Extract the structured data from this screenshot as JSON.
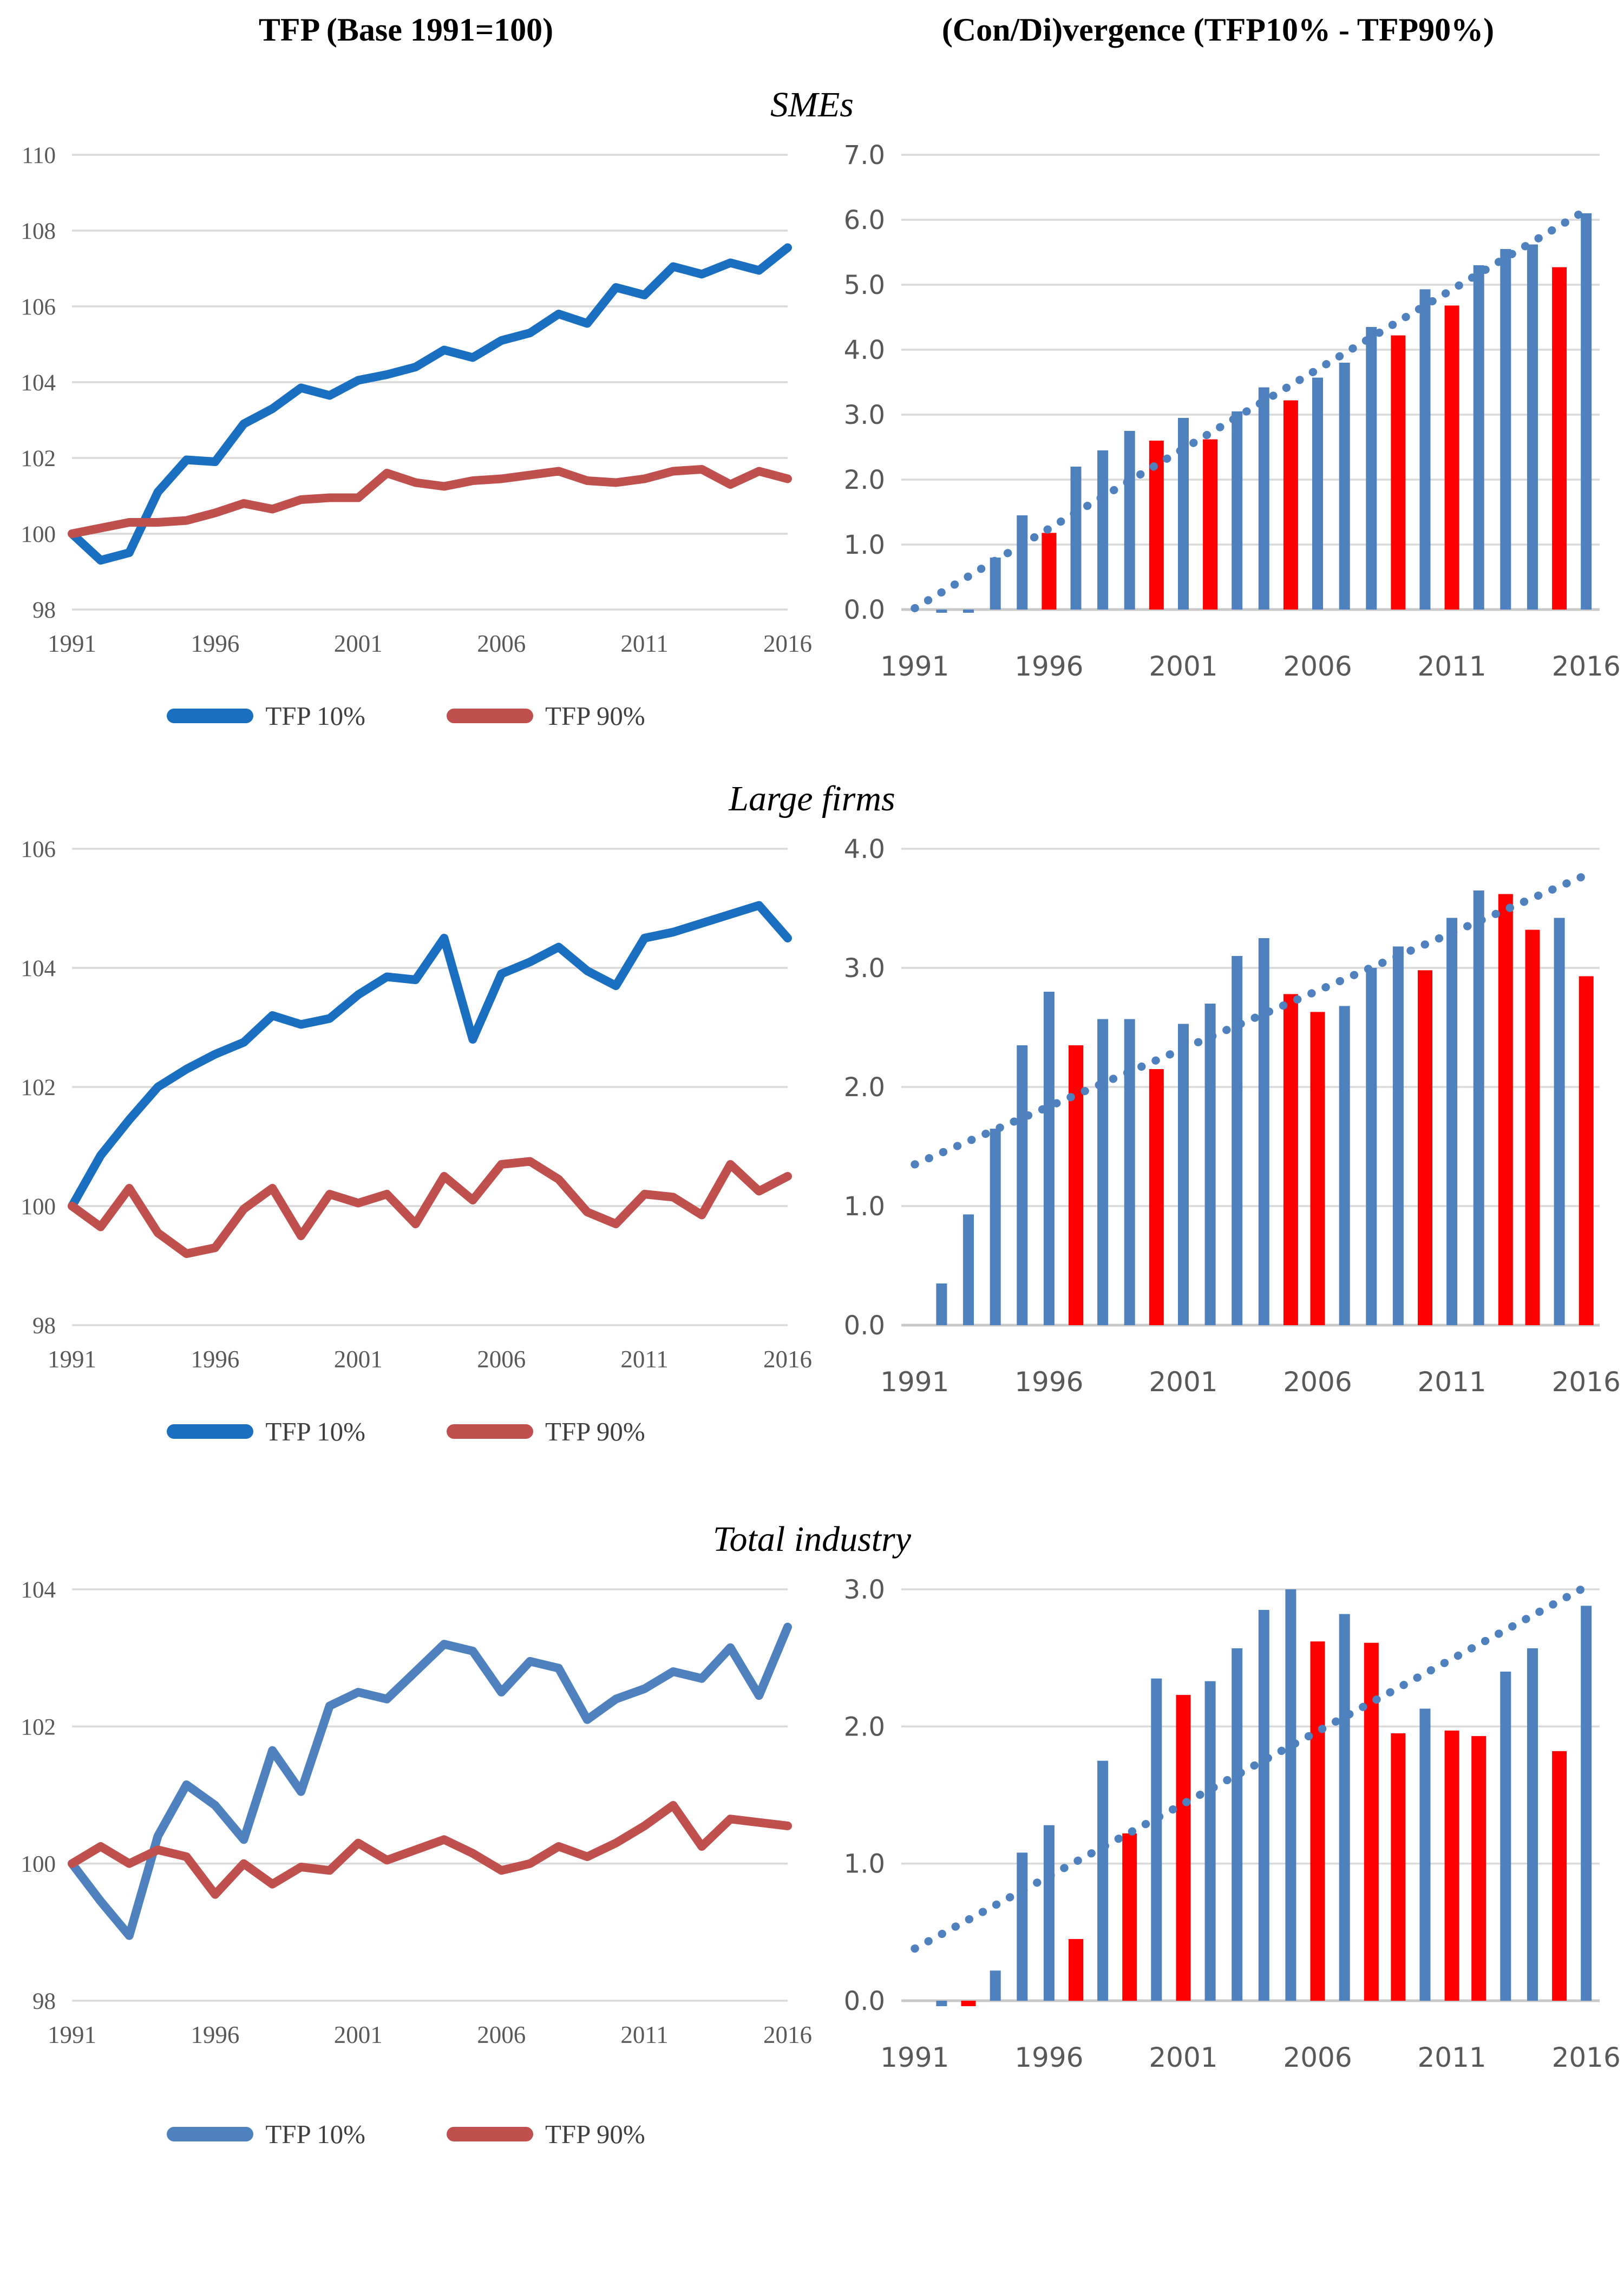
{
  "header": {
    "left_title": "TFP (Base 1991=100)",
    "right_title": "(Con/Di)vergence (TFP10% - TFP90%)"
  },
  "sections": [
    {
      "label": "SMEs"
    },
    {
      "label": "Large firms"
    },
    {
      "label": "Total industry"
    }
  ],
  "legends": [
    {
      "items": [
        {
          "label": "TFP 10%",
          "color": "#1a6fc0"
        },
        {
          "label": "TFP 90%",
          "color": "#c0504d"
        }
      ]
    },
    {
      "items": [
        {
          "label": "TFP 10%",
          "color": "#1a6fc0"
        },
        {
          "label": "TFP 90%",
          "color": "#c0504d"
        }
      ]
    },
    {
      "items": [
        {
          "label": "TFP 10%",
          "color": "#4e81bd"
        },
        {
          "label": "TFP 90%",
          "color": "#c0504d"
        }
      ]
    }
  ],
  "colors": {
    "line_blue": "#1a6fc0",
    "line_blue_light": "#4e81bd",
    "line_red": "#c0504d",
    "bar_blue": "#4e81bd",
    "bar_red": "#fe0000",
    "trend_blue": "#4e81bd",
    "gridline": "#d9d9d9",
    "axis_line": "#c9c9c9",
    "tick_text": "#595959"
  },
  "chart_data": [
    {
      "id": "smes-line",
      "type": "line",
      "section": "SMEs",
      "title": "TFP (Base 1991=100) - SMEs",
      "x": [
        1991,
        1992,
        1993,
        1994,
        1995,
        1996,
        1997,
        1998,
        1999,
        2000,
        2001,
        2002,
        2003,
        2004,
        2005,
        2006,
        2007,
        2008,
        2009,
        2010,
        2011,
        2012,
        2013,
        2014,
        2015,
        2016
      ],
      "x_ticks": [
        1991,
        1996,
        2001,
        2006,
        2011,
        2016
      ],
      "ylim": [
        98,
        110
      ],
      "ystep": 2,
      "tick_format": "int",
      "grid": true,
      "legend_position": "bottom",
      "series": [
        {
          "name": "TFP 10%",
          "color": "#1a6fc0",
          "values": [
            100,
            99.3,
            99.5,
            101.1,
            101.95,
            101.9,
            102.9,
            103.3,
            103.85,
            103.65,
            104.05,
            104.2,
            104.4,
            104.85,
            104.65,
            105.1,
            105.3,
            105.8,
            105.55,
            106.5,
            106.3,
            107.05,
            106.85,
            107.15,
            106.95,
            107.55
          ]
        },
        {
          "name": "TFP 90%",
          "color": "#c0504d",
          "values": [
            100,
            100.15,
            100.3,
            100.3,
            100.35,
            100.55,
            100.8,
            100.65,
            100.9,
            100.95,
            100.95,
            101.6,
            101.35,
            101.25,
            101.4,
            101.45,
            101.55,
            101.65,
            101.4,
            101.35,
            101.45,
            101.65,
            101.7,
            101.3,
            101.65,
            101.45
          ]
        }
      ]
    },
    {
      "id": "smes-bar",
      "type": "bar",
      "section": "SMEs",
      "title": "(Con/Di)vergence (TFP10% - TFP90%) - SMEs",
      "x": [
        1991,
        1992,
        1993,
        1994,
        1995,
        1996,
        1997,
        1998,
        1999,
        2000,
        2001,
        2002,
        2003,
        2004,
        2005,
        2006,
        2007,
        2008,
        2009,
        2010,
        2011,
        2012,
        2013,
        2014,
        2015,
        2016
      ],
      "x_ticks": [
        1991,
        1996,
        2001,
        2006,
        2011,
        2016
      ],
      "ylim": [
        0,
        7
      ],
      "ystep": 1,
      "tick_format": "1dp",
      "grid": true,
      "values": [
        0,
        -0.05,
        -0.05,
        0.8,
        1.45,
        1.18,
        2.2,
        2.45,
        2.75,
        2.6,
        2.95,
        2.62,
        3.05,
        3.42,
        3.22,
        3.57,
        3.8,
        4.35,
        4.22,
        4.93,
        4.68,
        5.3,
        5.55,
        5.62,
        5.27,
        6.1
      ],
      "bar_color_default": "#4e81bd",
      "bar_color_highlight": "#fe0000",
      "red_years": [
        1996,
        2000,
        2002,
        2005,
        2009,
        2011,
        2015
      ],
      "trend": {
        "style": "dotted",
        "color": "#4e81bd",
        "start_year": 1991,
        "start_value": 0.02,
        "end_year": 2016,
        "end_value": 6.15
      }
    },
    {
      "id": "large-line",
      "type": "line",
      "section": "Large firms",
      "title": "TFP (Base 1991=100) - Large firms",
      "x": [
        1991,
        1992,
        1993,
        1994,
        1995,
        1996,
        1997,
        1998,
        1999,
        2000,
        2001,
        2002,
        2003,
        2004,
        2005,
        2006,
        2007,
        2008,
        2009,
        2010,
        2011,
        2012,
        2013,
        2014,
        2015,
        2016
      ],
      "x_ticks": [
        1991,
        1996,
        2001,
        2006,
        2011,
        2016
      ],
      "ylim": [
        98,
        106
      ],
      "ystep": 2,
      "tick_format": "int",
      "grid": true,
      "legend_position": "bottom",
      "series": [
        {
          "name": "TFP 10%",
          "color": "#1a6fc0",
          "values": [
            100,
            100.85,
            101.45,
            102,
            102.3,
            102.55,
            102.75,
            103.2,
            103.05,
            103.15,
            103.55,
            103.85,
            103.8,
            104.5,
            102.8,
            103.9,
            104.1,
            104.35,
            103.95,
            103.7,
            104.5,
            104.6,
            104.75,
            104.9,
            105.05,
            104.5
          ]
        },
        {
          "name": "TFP 90%",
          "color": "#c0504d",
          "values": [
            100,
            99.65,
            100.3,
            99.55,
            99.2,
            99.3,
            99.95,
            100.3,
            99.5,
            100.2,
            100.05,
            100.2,
            99.7,
            100.5,
            100.1,
            100.7,
            100.75,
            100.45,
            99.9,
            99.7,
            100.2,
            100.15,
            99.85,
            100.7,
            100.25,
            100.5
          ]
        }
      ]
    },
    {
      "id": "large-bar",
      "type": "bar",
      "section": "Large firms",
      "title": "(Con/Di)vergence (TFP10% - TFP90%) - Large firms",
      "x": [
        1991,
        1992,
        1993,
        1994,
        1995,
        1996,
        1997,
        1998,
        1999,
        2000,
        2001,
        2002,
        2003,
        2004,
        2005,
        2006,
        2007,
        2008,
        2009,
        2010,
        2011,
        2012,
        2013,
        2014,
        2015,
        2016
      ],
      "x_ticks": [
        1991,
        1996,
        2001,
        2006,
        2011,
        2016
      ],
      "ylim": [
        0,
        4
      ],
      "ystep": 1,
      "tick_format": "1dp",
      "grid": true,
      "values": [
        0,
        0.35,
        0.93,
        1.65,
        2.35,
        2.8,
        2.35,
        2.57,
        2.57,
        2.15,
        2.53,
        2.7,
        3.1,
        3.25,
        2.78,
        2.63,
        2.68,
        3,
        3.18,
        2.98,
        3.42,
        3.65,
        3.62,
        3.32,
        3.42,
        2.93
      ],
      "bar_color_default": "#4e81bd",
      "bar_color_highlight": "#fe0000",
      "red_years": [
        1997,
        2000,
        2005,
        2006,
        2010,
        2013,
        2014,
        2016
      ],
      "trend": {
        "style": "dotted",
        "color": "#4e81bd",
        "start_year": 1991,
        "start_value": 1.35,
        "end_year": 2016,
        "end_value": 3.78
      }
    },
    {
      "id": "total-line",
      "type": "line",
      "section": "Total industry",
      "title": "TFP (Base 1991=100) - Total industry",
      "x": [
        1991,
        1992,
        1993,
        1994,
        1995,
        1996,
        1997,
        1998,
        1999,
        2000,
        2001,
        2002,
        2003,
        2004,
        2005,
        2006,
        2007,
        2008,
        2009,
        2010,
        2011,
        2012,
        2013,
        2014,
        2015,
        2016
      ],
      "x_ticks": [
        1991,
        1996,
        2001,
        2006,
        2011,
        2016
      ],
      "ylim": [
        98,
        104
      ],
      "ystep": 2,
      "tick_format": "int",
      "grid": true,
      "legend_position": "bottom",
      "series": [
        {
          "name": "TFP 10%",
          "color": "#4e81bd",
          "values": [
            100,
            99.45,
            98.95,
            100.4,
            101.15,
            100.85,
            100.35,
            101.65,
            101.05,
            102.3,
            102.5,
            102.4,
            102.8,
            103.2,
            103.1,
            102.5,
            102.95,
            102.85,
            102.1,
            102.4,
            102.55,
            102.8,
            102.7,
            103.15,
            102.45,
            103.45
          ]
        },
        {
          "name": "TFP 90%",
          "color": "#c0504d",
          "values": [
            100,
            100.25,
            100,
            100.2,
            100.1,
            99.55,
            100,
            99.7,
            99.95,
            99.9,
            100.3,
            100.05,
            100.2,
            100.35,
            100.15,
            99.9,
            100,
            100.25,
            100.1,
            100.3,
            100.55,
            100.85,
            100.25,
            100.65,
            100.6,
            100.55
          ]
        }
      ]
    },
    {
      "id": "total-bar",
      "type": "bar",
      "section": "Total industry",
      "title": "(Con/Di)vergence (TFP10% - TFP90%) - Total industry",
      "x": [
        1991,
        1992,
        1993,
        1994,
        1995,
        1996,
        1997,
        1998,
        1999,
        2000,
        2001,
        2002,
        2003,
        2004,
        2005,
        2006,
        2007,
        2008,
        2009,
        2010,
        2011,
        2012,
        2013,
        2014,
        2015,
        2016
      ],
      "x_ticks": [
        1991,
        1996,
        2001,
        2006,
        2011,
        2016
      ],
      "ylim": [
        0,
        3
      ],
      "ystep": 1,
      "tick_format": "1dp",
      "grid": true,
      "values": [
        0,
        -0.04,
        -0.04,
        0.22,
        1.08,
        1.28,
        0.45,
        1.75,
        1.22,
        2.35,
        2.23,
        2.33,
        2.57,
        2.85,
        3,
        2.62,
        2.82,
        2.61,
        1.95,
        2.13,
        1.97,
        1.93,
        2.4,
        2.57,
        1.82,
        2.88
      ],
      "bar_color_default": "#4e81bd",
      "bar_color_highlight": "#fe0000",
      "red_years": [
        1993,
        1997,
        1999,
        2001,
        2006,
        2008,
        2009,
        2011,
        2012,
        2015
      ],
      "trend": {
        "style": "dotted",
        "color": "#4e81bd",
        "start_year": 1991,
        "start_value": 0.38,
        "end_year": 2016,
        "end_value": 3.02
      }
    }
  ]
}
